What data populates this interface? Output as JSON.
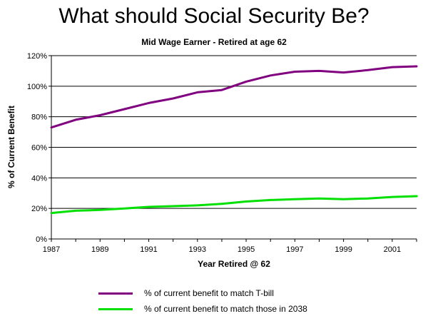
{
  "title": "What should Social Security Be?",
  "chart_data": {
    "type": "line",
    "title": "Mid Wage Earner - Retired at age 62",
    "xlabel": "Year Retired @ 62",
    "ylabel": "% of Current Benefit",
    "xlim": [
      1987,
      2002
    ],
    "ylim": [
      0,
      120
    ],
    "x_ticks": [
      1987,
      1989,
      1991,
      1993,
      1995,
      1997,
      1999,
      2001
    ],
    "x_tick_labels": [
      "1987",
      "1989",
      "1991",
      "1993",
      "1995",
      "1997",
      "1999",
      "2001"
    ],
    "y_ticks": [
      0,
      20,
      40,
      60,
      80,
      100,
      120
    ],
    "y_tick_labels": [
      "0%",
      "20%",
      "40%",
      "60%",
      "80%",
      "100%",
      "120%"
    ],
    "grid": "horizontal",
    "legend_position": "bottom",
    "x": [
      1987,
      1988,
      1989,
      1990,
      1991,
      1992,
      1993,
      1994,
      1995,
      1996,
      1997,
      1998,
      1999,
      2000,
      2001,
      2002
    ],
    "series": [
      {
        "name": "% of current benefit to match T-bill",
        "color": "#800080",
        "values": [
          73,
          78,
          81,
          85,
          89,
          92,
          96,
          97.5,
          103,
          107,
          109.5,
          110,
          109,
          110.5,
          112.5,
          113
        ]
      },
      {
        "name": "% of current benefit to match those in 2038",
        "color": "#00e000",
        "values": [
          17,
          18.5,
          19,
          20,
          21,
          21.5,
          22,
          23,
          24.5,
          25.5,
          26,
          26.5,
          26,
          26.5,
          27.5,
          28
        ]
      }
    ]
  }
}
